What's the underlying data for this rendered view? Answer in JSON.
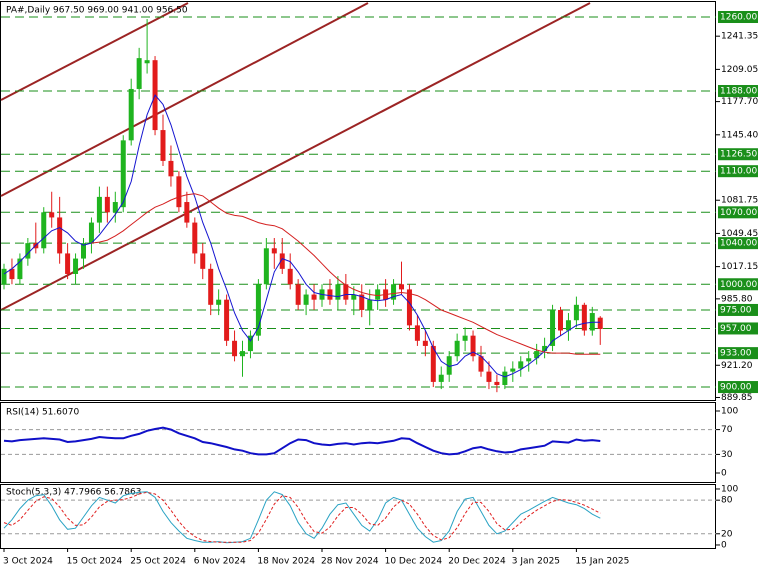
{
  "chart_data": [
    {
      "type": "candlestick",
      "title": "PA#,Daily  967.50 969.00 941.00 956.50",
      "categories": [
        "3 Oct 2024",
        null,
        null,
        null,
        null,
        null,
        null,
        null,
        "15 Oct 2024",
        null,
        null,
        null,
        null,
        null,
        null,
        null,
        "25 Oct 2024",
        null,
        null,
        null,
        null,
        null,
        null,
        null,
        "6 Nov 2024",
        null,
        null,
        null,
        null,
        null,
        null,
        null,
        "18 Nov 2024",
        null,
        null,
        null,
        null,
        null,
        null,
        null,
        "28 Nov 2024",
        null,
        null,
        null,
        null,
        null,
        null,
        null,
        "10 Dec 2024",
        null,
        null,
        null,
        null,
        null,
        null,
        null,
        "20 Dec 2024",
        null,
        null,
        null,
        null,
        null,
        null,
        null,
        "3 Jan 2025",
        null,
        null,
        null,
        null,
        null,
        null,
        null,
        "15 Jan 2025",
        null,
        null,
        null
      ],
      "open": [
        1000,
        1015,
        1005,
        1025,
        1040,
        1035,
        1070,
        1065,
        1030,
        1010,
        1025,
        1040,
        1060,
        1085,
        1070,
        1075,
        1140,
        1190,
        1215,
        1218,
        1150,
        1120,
        1105,
        1080,
        1060,
        1030,
        1015,
        980,
        985,
        945,
        930,
        935,
        950,
        1000,
        1035,
        1030,
        1015,
        1000,
        980,
        990,
        985,
        995,
        985,
        1000,
        985,
        990,
        975,
        985,
        995,
        985,
        1000,
        995,
        960,
        945,
        940,
        905,
        912,
        930,
        945,
        950,
        930,
        915,
        905,
        902,
        915,
        918,
        925,
        928,
        935,
        940,
        975,
        955,
        965,
        980,
        955,
        967.5
      ],
      "high": [
        1020,
        1025,
        1030,
        1045,
        1060,
        1075,
        1090,
        1085,
        1040,
        1030,
        1045,
        1065,
        1095,
        1095,
        1090,
        1145,
        1200,
        1230,
        1258,
        1222,
        1165,
        1135,
        1110,
        1090,
        1065,
        1040,
        1020,
        995,
        990,
        955,
        945,
        955,
        1005,
        1045,
        1045,
        1045,
        1030,
        1005,
        995,
        1000,
        1000,
        1005,
        1008,
        1010,
        998,
        1000,
        995,
        1000,
        1005,
        1005,
        1022,
        1000,
        970,
        955,
        945,
        920,
        935,
        952,
        958,
        955,
        940,
        925,
        912,
        920,
        925,
        930,
        935,
        942,
        948,
        980,
        978,
        972,
        988,
        982,
        978,
        969
      ],
      "low": [
        995,
        1000,
        1000,
        1018,
        1030,
        1030,
        1055,
        1020,
        1005,
        1000,
        1015,
        1030,
        1050,
        1060,
        1060,
        1070,
        1135,
        1180,
        1205,
        1145,
        1115,
        1095,
        1070,
        1055,
        1020,
        1005,
        970,
        970,
        940,
        925,
        910,
        928,
        945,
        995,
        1015,
        1010,
        995,
        975,
        970,
        975,
        978,
        980,
        975,
        980,
        970,
        968,
        960,
        975,
        978,
        980,
        990,
        955,
        940,
        930,
        900,
        898,
        905,
        925,
        935,
        925,
        910,
        898,
        895,
        898,
        905,
        910,
        915,
        922,
        928,
        935,
        950,
        945,
        958,
        950,
        950,
        941
      ],
      "close": [
        1015,
        1005,
        1025,
        1040,
        1035,
        1070,
        1065,
        1030,
        1010,
        1025,
        1040,
        1060,
        1085,
        1070,
        1080,
        1140,
        1190,
        1220,
        1218,
        1150,
        1120,
        1105,
        1075,
        1060,
        1030,
        1015,
        980,
        985,
        945,
        930,
        935,
        950,
        1000,
        1035,
        1030,
        1015,
        1000,
        980,
        990,
        985,
        995,
        985,
        1000,
        985,
        990,
        975,
        985,
        995,
        985,
        1000,
        995,
        960,
        945,
        940,
        905,
        912,
        930,
        945,
        950,
        930,
        915,
        905,
        902,
        915,
        918,
        925,
        928,
        935,
        940,
        975,
        955,
        965,
        980,
        955,
        972,
        956.5
      ],
      "up_color": "#1fb41f",
      "down_color": "#e21b1b",
      "overlays": [
        {
          "color": "#1515d0",
          "values": [
            1010,
            1015,
            1022,
            1030,
            1038,
            1045,
            1052,
            1055,
            1050,
            1042,
            1038,
            1040,
            1048,
            1058,
            1068,
            1080,
            1100,
            1135,
            1165,
            1184,
            1175,
            1155,
            1130,
            1105,
            1085,
            1060,
            1040,
            1015,
            995,
            972,
            955,
            945,
            958,
            985,
            1012,
            1025,
            1022,
            1012,
            1000,
            992,
            990,
            989,
            988,
            990,
            990,
            988,
            985,
            984,
            985,
            988,
            990,
            982,
            970,
            955,
            938,
            925,
            920,
            922,
            930,
            934,
            930,
            922,
            913,
            910,
            913,
            917,
            922,
            928,
            935,
            945,
            950,
            955,
            960,
            962,
            963,
            963
          ]
        },
        {
          "color": "#d42020",
          "values": [
            null,
            null,
            null,
            null,
            null,
            null,
            null,
            null,
            null,
            null,
            null,
            1040,
            1041,
            1043,
            1047,
            1052,
            1058,
            1064,
            1070,
            1075,
            1078,
            1082,
            1085,
            1087,
            1088,
            1086,
            1080,
            1074,
            1069,
            1067,
            1066,
            1063,
            1060,
            1058,
            1057,
            1054,
            1048,
            1042,
            1035,
            1028,
            1020,
            1012,
            1005,
            999,
            995,
            992,
            990,
            989,
            990,
            991,
            992,
            991,
            989,
            985,
            980,
            975,
            972,
            969,
            966,
            963,
            959,
            955,
            951,
            948,
            945,
            942,
            939,
            936,
            934,
            933,
            933,
            933,
            932,
            932,
            932,
            932
          ]
        }
      ],
      "ylim": [
        887.4,
        1274.6
      ],
      "yticks": [
        1241.35,
        1209.05,
        {
          "value": 1177.7,
          "label": "1177.70"
        },
        {
          "value": 1145.4,
          "label": "1145.40"
        },
        1081.75,
        1049.45,
        1017.15,
        {
          "value": 985.8,
          "label": "985.80"
        },
        {
          "value": 921.2,
          "label": "921.20"
        },
        889.85
      ],
      "levels": [
        {
          "value": 1260,
          "label": "1260.00"
        },
        {
          "value": 1188,
          "label": "1188.00"
        },
        {
          "value": 1126.5,
          "label": "1126.50"
        },
        {
          "value": 1110,
          "label": "1110.00"
        },
        {
          "value": 1070,
          "label": "1070.00"
        },
        {
          "value": 1040,
          "label": "1040.00"
        },
        {
          "value": 1000,
          "label": "1000.00"
        },
        {
          "value": 975,
          "label": "975.00"
        },
        {
          "value": 957,
          "label": "957.00"
        },
        {
          "value": 933,
          "label": "933.00"
        },
        {
          "value": 900,
          "label": "900.00"
        }
      ],
      "level_color": "#1a8f1a"
    },
    {
      "type": "line",
      "title": "RSI(14) 51.6070",
      "series": [
        {
          "color": "#1010c8",
          "values": [
            52,
            51,
            53,
            54,
            55,
            56,
            55,
            54,
            50,
            51,
            53,
            55,
            58,
            57,
            56,
            56,
            60,
            63,
            68,
            71,
            73,
            70,
            64,
            60,
            56,
            50,
            48,
            45,
            42,
            38,
            36,
            32,
            30,
            30,
            32,
            40,
            48,
            54,
            53,
            48,
            46,
            45,
            47,
            48,
            46,
            48,
            49,
            48,
            50,
            52,
            56,
            55,
            48,
            42,
            36,
            32,
            30,
            31,
            35,
            40,
            42,
            38,
            35,
            33,
            34,
            38,
            40,
            42,
            44,
            51,
            50,
            49,
            54,
            52,
            53,
            51.6
          ]
        }
      ],
      "ylim": [
        -14.5,
        112.9
      ],
      "yticks": [
        0,
        30,
        70,
        100
      ]
    },
    {
      "type": "line",
      "title": "Stoch(5,3,3) 47.7966 56.7863",
      "series": [
        {
          "color": "#2aa3c4",
          "values": [
            30,
            45,
            65,
            80,
            88,
            90,
            70,
            45,
            28,
            30,
            50,
            70,
            85,
            80,
            75,
            88,
            92,
            94,
            95,
            85,
            60,
            40,
            25,
            12,
            8,
            5,
            5,
            6,
            4,
            5,
            6,
            12,
            45,
            80,
            95,
            90,
            70,
            40,
            20,
            12,
            30,
            55,
            72,
            75,
            55,
            35,
            25,
            45,
            75,
            85,
            80,
            55,
            30,
            15,
            5,
            8,
            25,
            60,
            82,
            85,
            60,
            35,
            20,
            25,
            40,
            55,
            62,
            70,
            78,
            85,
            80,
            75,
            72,
            65,
            55,
            47.8
          ]
        },
        {
          "color": "#e02020",
          "dashed": true,
          "values": [
            40,
            35,
            45,
            62,
            78,
            86,
            83,
            68,
            48,
            35,
            36,
            50,
            68,
            78,
            80,
            81,
            85,
            91,
            94,
            91,
            80,
            62,
            42,
            26,
            15,
            8,
            6,
            5,
            5,
            5,
            5,
            8,
            21,
            46,
            73,
            88,
            85,
            67,
            43,
            24,
            21,
            32,
            52,
            67,
            67,
            55,
            38,
            35,
            48,
            68,
            80,
            73,
            55,
            33,
            17,
            9,
            13,
            31,
            56,
            76,
            76,
            60,
            38,
            27,
            28,
            40,
            52,
            62,
            70,
            78,
            81,
            80,
            76,
            71,
            64,
            56.8
          ]
        }
      ],
      "ylim": [
        -5.4,
        107.1
      ],
      "yticks": [
        0,
        20,
        80,
        100
      ]
    }
  ]
}
